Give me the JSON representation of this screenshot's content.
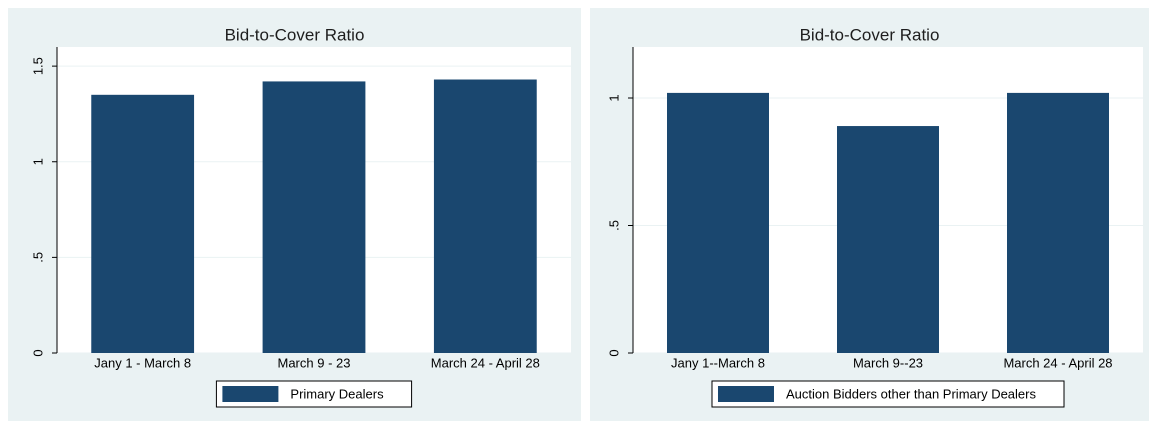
{
  "chart_data": [
    {
      "type": "bar",
      "title": "Bid-to-Cover Ratio",
      "categories": [
        "Jany 1 - March 8",
        "March 9 - 23",
        "March 24 - April 28"
      ],
      "series": [
        {
          "name": "Primary Dealers",
          "color": "#1a476f",
          "values": [
            1.35,
            1.42,
            1.43
          ]
        }
      ],
      "ylim": [
        0,
        1.6
      ],
      "yticks": [
        0,
        {
          "value": 0.5,
          "label": ".5"
        },
        1,
        1.5
      ],
      "grid": true,
      "legend": "bottom"
    },
    {
      "type": "bar",
      "title": "Bid-to-Cover Ratio",
      "categories": [
        "Jany 1--March 8",
        "March 9--23",
        "March 24 - April 28"
      ],
      "series": [
        {
          "name": "Auction Bidders other than Primary Dealers",
          "color": "#1a476f",
          "values": [
            1.02,
            0.89,
            1.02
          ]
        }
      ],
      "ylim": [
        0,
        1.2
      ],
      "yticks": [
        0,
        {
          "value": 0.5,
          "label": ".5"
        },
        1
      ],
      "grid": true,
      "legend": "bottom"
    }
  ]
}
